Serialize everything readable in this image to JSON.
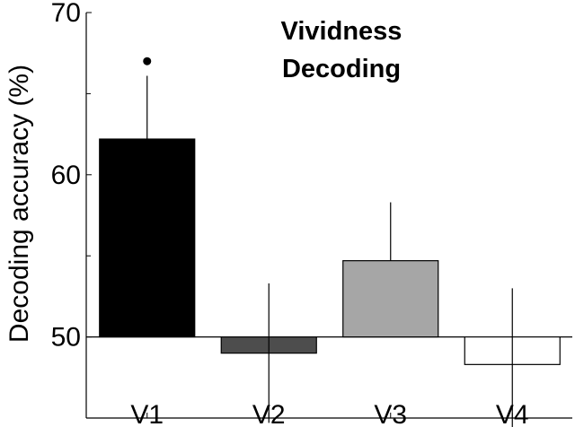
{
  "chart_data": {
    "type": "bar",
    "title_lines": [
      "Vividness",
      "Decoding"
    ],
    "ylabel": "Decoding accuracy (%)",
    "xlabel": "",
    "categories": [
      "V1",
      "V2",
      "V3",
      "V4"
    ],
    "values": [
      62.2,
      49.0,
      54.7,
      48.3
    ],
    "error_upper": [
      66.1,
      53.3,
      58.3,
      53.0
    ],
    "error_lower": [
      62.2,
      44.7,
      54.7,
      43.8
    ],
    "bar_colors": [
      "#000000",
      "#4d4d4d",
      "#a6a6a6",
      "#ffffff"
    ],
    "baseline": 50,
    "ylim": [
      45,
      70
    ],
    "yticks": [
      50,
      60,
      70
    ],
    "yticks_minor": [
      45,
      55,
      65
    ],
    "significance": [
      {
        "category": "V1",
        "marker": "dot",
        "value": 67.0
      }
    ],
    "grid": false,
    "legend": "none"
  }
}
